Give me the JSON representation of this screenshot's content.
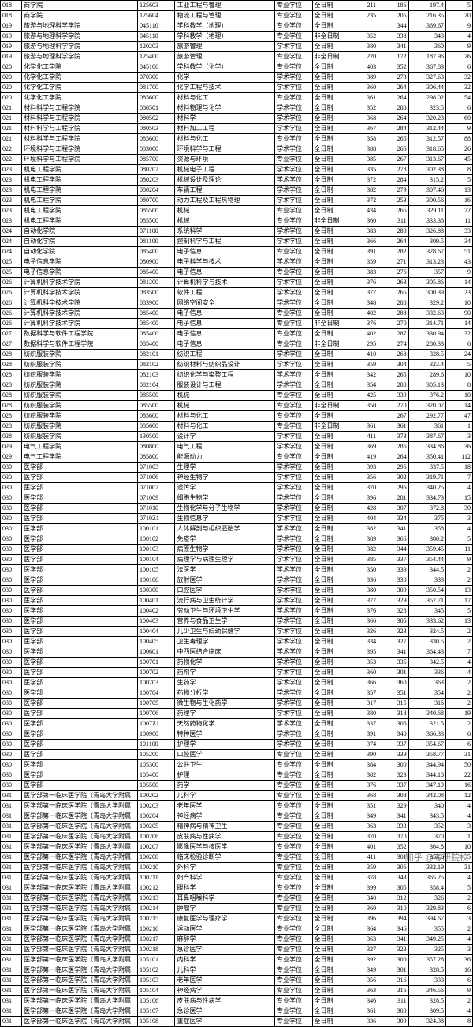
{
  "watermark": "知乎 @考研院校",
  "columns": [
    "c0",
    "c1",
    "c2",
    "c3",
    "c4",
    "c5",
    "c6",
    "c7",
    "c8",
    "c9"
  ],
  "rows": [
    [
      "018",
      "商学院",
      "125603",
      "工业工程与管理",
      "专业学位",
      "全日制",
      "211",
      "186",
      "197.4",
      "5"
    ],
    [
      "018",
      "商学院",
      "125604",
      "物流工程与管理",
      "专业学位",
      "全日制",
      "235",
      "205",
      "216.35",
      "20"
    ],
    [
      "019",
      "旅游与地理科学学院",
      "045110",
      "学科教学（地理）",
      "专业学位",
      "全日制",
      "",
      "344",
      "369.67",
      "9"
    ],
    [
      "019",
      "旅游与地理科学学院",
      "045110",
      "学科教学（地理）",
      "专业学位",
      "非全日制",
      "352",
      "338",
      "343",
      "4"
    ],
    [
      "019",
      "旅游与地理科学学院",
      "120203",
      "旅游管理",
      "学术学位",
      "全日制",
      "380",
      "341",
      "360",
      "9"
    ],
    [
      "019",
      "旅游与地理科学学院",
      "125400",
      "旅游管理",
      "专业学位",
      "非全日制",
      "220",
      "172",
      "187.96",
      "26"
    ],
    [
      "020",
      "化学化工学院",
      "045106",
      "学科教学（化学）",
      "专业学位",
      "全日制",
      "403",
      "352",
      "367.83",
      "6"
    ],
    [
      "020",
      "化学化工学院",
      "070300",
      "化学",
      "学术学位",
      "全日制",
      "389",
      "273",
      "327.63",
      "32"
    ],
    [
      "020",
      "化学化工学院",
      "081700",
      "化学工程与技术",
      "学术学位",
      "全日制",
      "360",
      "264",
      "306.44",
      "32"
    ],
    [
      "020",
      "化学化工学院",
      "085600",
      "材料与化工",
      "专业学位",
      "全日制",
      "361",
      "264",
      "298.02",
      "54"
    ],
    [
      "021",
      "材料科学与工程学院",
      "080501",
      "材料物理与化学",
      "学术学位",
      "全日制",
      "352",
      "280",
      "323.5",
      "6"
    ],
    [
      "021",
      "材料科学与工程学院",
      "080502",
      "材料学",
      "学术学位",
      "全日制",
      "368",
      "264",
      "320.23",
      "60"
    ],
    [
      "021",
      "材料科学与工程学院",
      "080503",
      "材料加工工程",
      "学术学位",
      "全日制",
      "367",
      "284",
      "312.44",
      "9"
    ],
    [
      "021",
      "材料科学与工程学院",
      "085600",
      "材料与化工",
      "专业学位",
      "全日制",
      "358",
      "265",
      "312.57",
      "88"
    ],
    [
      "022",
      "环境科学与工程学院",
      "083000",
      "环境科学与工程",
      "学术学位",
      "全日制",
      "388",
      "265",
      "318.65",
      "26"
    ],
    [
      "022",
      "环境科学与工程学院",
      "085700",
      "资源与环境",
      "专业学位",
      "全日制",
      "385",
      "267",
      "313.67",
      "45"
    ],
    [
      "023",
      "机电工程学院",
      "080202",
      "机械电子工程",
      "学术学位",
      "全日制",
      "335",
      "278",
      "302.38",
      "8"
    ],
    [
      "023",
      "机电工程学院",
      "080203",
      "机械设计及理论",
      "学术学位",
      "全日制",
      "372",
      "284",
      "315.2",
      "5"
    ],
    [
      "023",
      "机电工程学院",
      "080204",
      "车辆工程",
      "学术学位",
      "全日制",
      "382",
      "279",
      "307.46",
      "13"
    ],
    [
      "023",
      "机电工程学院",
      "080700",
      "动力工程及工程热物理",
      "学术学位",
      "全日制",
      "372",
      "253",
      "300.56",
      "16"
    ],
    [
      "023",
      "机电工程学院",
      "085500",
      "机械",
      "专业学位",
      "全日制",
      "434",
      "265",
      "329.11",
      "72"
    ],
    [
      "023",
      "机电工程学院",
      "085500",
      "机械",
      "专业学位",
      "非全日制",
      "360",
      "311",
      "333.36",
      "11"
    ],
    [
      "024",
      "自动化学院",
      "071100",
      "系统科学",
      "学术学位",
      "全日制",
      "383",
      "280",
      "326.88",
      "33"
    ],
    [
      "024",
      "自动化学院",
      "081100",
      "控制科学与工程",
      "学术学位",
      "全日制",
      "366",
      "264",
      "309.5",
      "34"
    ],
    [
      "024",
      "自动化学院",
      "085400",
      "电子信息",
      "专业学位",
      "全日制",
      "391",
      "282",
      "328.67",
      "51"
    ],
    [
      "025",
      "电子信息学院",
      "080900",
      "电子科学与技术",
      "学术学位",
      "全日制",
      "359",
      "271",
      "313.23",
      "43"
    ],
    [
      "025",
      "电子信息学院",
      "085400",
      "电子信息",
      "专业学位",
      "全日制",
      "383",
      "276",
      "357",
      "9"
    ],
    [
      "026",
      "计算机科学技术学院",
      "081200",
      "计算机科学与技术",
      "学术学位",
      "全日制",
      "376",
      "263",
      "305.86",
      "14"
    ],
    [
      "026",
      "计算机科学技术学院",
      "083500",
      "软件工程",
      "学术学位",
      "全日制",
      "377",
      "265",
      "300.39",
      "23"
    ],
    [
      "026",
      "计算机科学技术学院",
      "083900",
      "网络空间安全",
      "学术学位",
      "全日制",
      "348",
      "280",
      "329.2",
      "10"
    ],
    [
      "026",
      "计算机科学技术学院",
      "085400",
      "电子信息",
      "专业学位",
      "全日制",
      "402",
      "288",
      "332.63",
      "90"
    ],
    [
      "026",
      "计算机科学技术学院",
      "085400",
      "电子信息",
      "专业学位",
      "非全日制",
      "376",
      "270",
      "314.71",
      "14"
    ],
    [
      "027",
      "数据科学与软件工程学院",
      "085400",
      "电子信息",
      "专业学位",
      "全日制",
      "402",
      "287",
      "330.94",
      "32"
    ],
    [
      "027",
      "数据科学与软件工程学院",
      "085400",
      "电子信息",
      "专业学位",
      "非全日制",
      "295",
      "274",
      "280.33",
      "6"
    ],
    [
      "028",
      "纺织服装学院",
      "082101",
      "纺织工程",
      "学术学位",
      "全日制",
      "410",
      "268",
      "328.5",
      "24"
    ],
    [
      "028",
      "纺织服装学院",
      "082102",
      "纺织材料与纺织品设计",
      "学术学位",
      "全日制",
      "359",
      "304",
      "323.4",
      "5"
    ],
    [
      "028",
      "纺织服装学院",
      "082103",
      "纺织化学与染整工程",
      "学术学位",
      "全日制",
      "342",
      "265",
      "289.6",
      "10"
    ],
    [
      "028",
      "纺织服装学院",
      "082104",
      "服装设计与工程",
      "学术学位",
      "全日制",
      "354",
      "280",
      "305.13",
      "8"
    ],
    [
      "028",
      "纺织服装学院",
      "085500",
      "机械",
      "专业学位",
      "全日制",
      "425",
      "339",
      "376.2",
      "10"
    ],
    [
      "028",
      "纺织服装学院",
      "085500",
      "机械",
      "专业学位",
      "非全日制",
      "350",
      "270",
      "320.07",
      "14"
    ],
    [
      "028",
      "纺织服装学院",
      "085600",
      "材料与化工",
      "专业学位",
      "全日制",
      "",
      "267",
      "292.77",
      "47"
    ],
    [
      "028",
      "纺织服装学院",
      "085600",
      "材料与化工",
      "专业学位",
      "非全日制",
      "361",
      "361",
      "361",
      "1"
    ],
    [
      "028",
      "纺织服装学院",
      "130500",
      "设计学",
      "学术学位",
      "全日制",
      "411",
      "373",
      "387.67",
      "3"
    ],
    [
      "029",
      "电气工程学院",
      "080800",
      "电气工程",
      "学术学位",
      "全日制",
      "369",
      "286",
      "334.86",
      "36"
    ],
    [
      "029",
      "电气工程学院",
      "085800",
      "能源动力",
      "专业学位",
      "全日制",
      "419",
      "264",
      "350.41",
      "112"
    ],
    [
      "030",
      "医学部",
      "071003",
      "生理学",
      "学术学位",
      "全日制",
      "393",
      "296",
      "337.5",
      "18"
    ],
    [
      "030",
      "医学部",
      "071006",
      "神经生物学",
      "学术学位",
      "全日制",
      "356",
      "302",
      "319.71",
      "7"
    ],
    [
      "030",
      "医学部",
      "071007",
      "遗传学",
      "学术学位",
      "全日制",
      "370",
      "296",
      "340.25",
      "4"
    ],
    [
      "030",
      "医学部",
      "071009",
      "细胞生物学",
      "学术学位",
      "全日制",
      "396",
      "281",
      "334.73",
      "15"
    ],
    [
      "030",
      "医学部",
      "071010",
      "生物化学与分子生物学",
      "学术学位",
      "全日制",
      "428",
      "307",
      "372.8",
      "30"
    ],
    [
      "030",
      "医学部",
      "0710Z1",
      "生物信息学",
      "学术学位",
      "全日制",
      "404",
      "334",
      "375",
      "3"
    ],
    [
      "030",
      "医学部",
      "100101",
      "人体解剖与组织胚胎学",
      "学术学位",
      "全日制",
      "382",
      "341",
      "358",
      "4"
    ],
    [
      "030",
      "医学部",
      "100102",
      "免疫学",
      "学术学位",
      "全日制",
      "389",
      "366",
      "380.2",
      "5"
    ],
    [
      "030",
      "医学部",
      "100103",
      "病原生物学",
      "学术学位",
      "全日制",
      "382",
      "344",
      "359.45",
      "11"
    ],
    [
      "030",
      "医学部",
      "100104",
      "病理学与病理生理学",
      "学术学位",
      "全日制",
      "385",
      "337",
      "354.44",
      "9"
    ],
    [
      "030",
      "医学部",
      "100105",
      "法医学",
      "学术学位",
      "全日制",
      "350",
      "339",
      "344.5",
      "2"
    ],
    [
      "030",
      "医学部",
      "100106",
      "放射医学",
      "学术学位",
      "全日制",
      "336",
      "330",
      "333",
      "2"
    ],
    [
      "030",
      "医学部",
      "100300",
      "口腔医学",
      "学术学位",
      "全日制",
      "380",
      "309",
      "350.54",
      "13"
    ],
    [
      "030",
      "医学部",
      "100401",
      "流行病与卫生统计学",
      "学术学位",
      "全日制",
      "377",
      "329",
      "357.71",
      "17"
    ],
    [
      "030",
      "医学部",
      "100402",
      "劳动卫生与环境卫生学",
      "学术学位",
      "全日制",
      "376",
      "328",
      "345",
      "5"
    ],
    [
      "030",
      "医学部",
      "100403",
      "营养与食品卫生学",
      "学术学位",
      "全日制",
      "366",
      "305",
      "333.62",
      "13"
    ],
    [
      "030",
      "医学部",
      "100404",
      "儿少卫生与妇幼保健学",
      "学术学位",
      "全日制",
      "326",
      "323",
      "324.5",
      "2"
    ],
    [
      "030",
      "医学部",
      "100405",
      "卫生毒理学",
      "学术学位",
      "全日制",
      "334",
      "327",
      "330.5",
      "2"
    ],
    [
      "030",
      "医学部",
      "100601",
      "中西医结合临床",
      "学术学位",
      "全日制",
      "395",
      "341",
      "364.43",
      "7"
    ],
    [
      "030",
      "医学部",
      "100701",
      "药物化学",
      "学术学位",
      "全日制",
      "353",
      "335",
      "342.5",
      "4"
    ],
    [
      "030",
      "医学部",
      "100702",
      "药剂学",
      "学术学位",
      "全日制",
      "360",
      "301",
      "336",
      "4"
    ],
    [
      "030",
      "医学部",
      "100703",
      "生药学",
      "学术学位",
      "全日制",
      "366",
      "360",
      "363",
      "2"
    ],
    [
      "030",
      "医学部",
      "100704",
      "药物分析学",
      "学术学位",
      "全日制",
      "357",
      "351",
      "354",
      "2"
    ],
    [
      "030",
      "医学部",
      "100705",
      "微生物与生化药学",
      "学术学位",
      "全日制",
      "317",
      "315",
      "316",
      "2"
    ],
    [
      "030",
      "医学部",
      "100706",
      "药理学",
      "学术学位",
      "全日制",
      "380",
      "318",
      "340.68",
      "19"
    ],
    [
      "030",
      "医学部",
      "1007Z1",
      "天然药物化学",
      "学术学位",
      "全日制",
      "337",
      "305",
      "321.5",
      "2"
    ],
    [
      "030",
      "医学部",
      "100900",
      "特种医学",
      "学术学位",
      "全日制",
      "391",
      "340",
      "366.33",
      "6"
    ],
    [
      "030",
      "医学部",
      "101100",
      "护理学",
      "学术学位",
      "全日制",
      "374",
      "337",
      "354.67",
      "6"
    ],
    [
      "030",
      "医学部",
      "105200",
      "口腔医学",
      "专业学位",
      "全日制",
      "390",
      "339",
      "358.77",
      "31"
    ],
    [
      "030",
      "医学部",
      "105300",
      "公共卫生",
      "专业学位",
      "全日制",
      "384",
      "300",
      "344.94",
      "50"
    ],
    [
      "030",
      "医学部",
      "105400",
      "护理",
      "专业学位",
      "全日制",
      "382",
      "323",
      "344.18",
      "22"
    ],
    [
      "030",
      "医学部",
      "105500",
      "药学",
      "专业学位",
      "全日制",
      "376",
      "337",
      "347.19",
      "16"
    ],
    [
      "031",
      "医学部第一临床医学院（青岛大学附属",
      "100202",
      "儿科学",
      "专业学位",
      "全日制",
      "368",
      "308",
      "342.08",
      "12"
    ],
    [
      "031",
      "医学部第一临床医学院（青岛大学附属",
      "100203",
      "老年医学",
      "专业学位",
      "全日制",
      "351",
      "329",
      "340",
      "4"
    ],
    [
      "031",
      "医学部第一临床医学院（青岛大学附属",
      "100204",
      "神经病学",
      "专业学位",
      "全日制",
      "349",
      "341",
      "343.5",
      "4"
    ],
    [
      "031",
      "医学部第一临床医学院（青岛大学附属",
      "100205",
      "精神病与精神卫生",
      "专业学位",
      "全日制",
      "363",
      "333",
      "352",
      "3"
    ],
    [
      "031",
      "医学部第一临床医学院（青岛大学附属",
      "100206",
      "皮肤病与性病学",
      "专业学位",
      "全日制",
      "370",
      "370",
      "370",
      "1"
    ],
    [
      "031",
      "医学部第一临床医学院（青岛大学附属",
      "100207",
      "影像医学与核医学",
      "专业学位",
      "全日制",
      "401",
      "352",
      "364.8",
      "10"
    ],
    [
      "031",
      "医学部第一临床医学院（青岛大学附属",
      "100208",
      "临床检验诊断学",
      "专业学位",
      "全日制",
      "411",
      "301",
      "353.6",
      "5"
    ],
    [
      "031",
      "医学部第一临床医学院（青岛大学附属",
      "100210",
      "外科学",
      "专业学位",
      "全日制",
      "359",
      "306",
      "332.19",
      "31"
    ],
    [
      "031",
      "医学部第一临床医学院（青岛大学附属",
      "100211",
      "妇产科学",
      "专业学位",
      "全日制",
      "378",
      "343",
      "365.25",
      "4"
    ],
    [
      "031",
      "医学部第一临床医学院（青岛大学附属",
      "100212",
      "眼科学",
      "专业学位",
      "全日制",
      "399",
      "305",
      "358.4",
      "5"
    ],
    [
      "031",
      "医学部第一临床医学院（青岛大学附属",
      "100213",
      "耳鼻咽喉科学",
      "专业学位",
      "全日制",
      "340",
      "312",
      "326",
      "2"
    ],
    [
      "031",
      "医学部第一临床医学院（青岛大学附属",
      "100214",
      "肿瘤学",
      "专业学位",
      "全日制",
      "360",
      "310",
      "329.83",
      "6"
    ],
    [
      "031",
      "医学部第一临床医学院（青岛大学附属",
      "100215",
      "康复医学与理疗学",
      "专业学位",
      "全日制",
      "396",
      "394",
      "394.67",
      "3"
    ],
    [
      "031",
      "医学部第一临床医学院（青岛大学附属",
      "100216",
      "运动医学",
      "专业学位",
      "全日制",
      "364",
      "346",
      "355",
      "2"
    ],
    [
      "031",
      "医学部第一临床医学院（青岛大学附属",
      "100217",
      "麻醉学",
      "专业学位",
      "全日制",
      "363",
      "341",
      "349.25",
      "4"
    ],
    [
      "031",
      "医学部第一临床医学院（青岛大学附属",
      "100218",
      "急诊医学",
      "专业学位",
      "全日制",
      "327",
      "323",
      "325",
      "3"
    ],
    [
      "031",
      "医学部第一临床医学院（青岛大学附属",
      "105101",
      "内科学",
      "专业学位",
      "全日制",
      "392",
      "300",
      "357.28",
      "36"
    ],
    [
      "031",
      "医学部第一临床医学院（青岛大学附属",
      "105102",
      "儿科学",
      "专业学位",
      "全日制",
      "349",
      "301",
      "328.5",
      "16"
    ],
    [
      "031",
      "医学部第一临床医学院（青岛大学附属",
      "105103",
      "老年医学",
      "专业学位",
      "全日制",
      "356",
      "316",
      "333",
      "6"
    ],
    [
      "031",
      "医学部第一临床医学院（青岛大学附属",
      "105104",
      "神经病学",
      "专业学位",
      "全日制",
      "363",
      "316",
      "346.56",
      "9"
    ],
    [
      "031",
      "医学部第一临床医学院（青岛大学附属",
      "105106",
      "皮肤病与性病学",
      "专业学位",
      "全日制",
      "346",
      "311",
      "328.5",
      "2"
    ],
    [
      "031",
      "医学部第一临床医学院（青岛大学附属",
      "105107",
      "急诊医学",
      "专业学位",
      "全日制",
      "361",
      "300",
      "309.5",
      "4"
    ],
    [
      "031",
      "医学部第一临床医学院（青岛大学附属",
      "105108",
      "重症医学",
      "专业学位",
      "全日制",
      "336",
      "309",
      "324.38",
      "8"
    ]
  ]
}
